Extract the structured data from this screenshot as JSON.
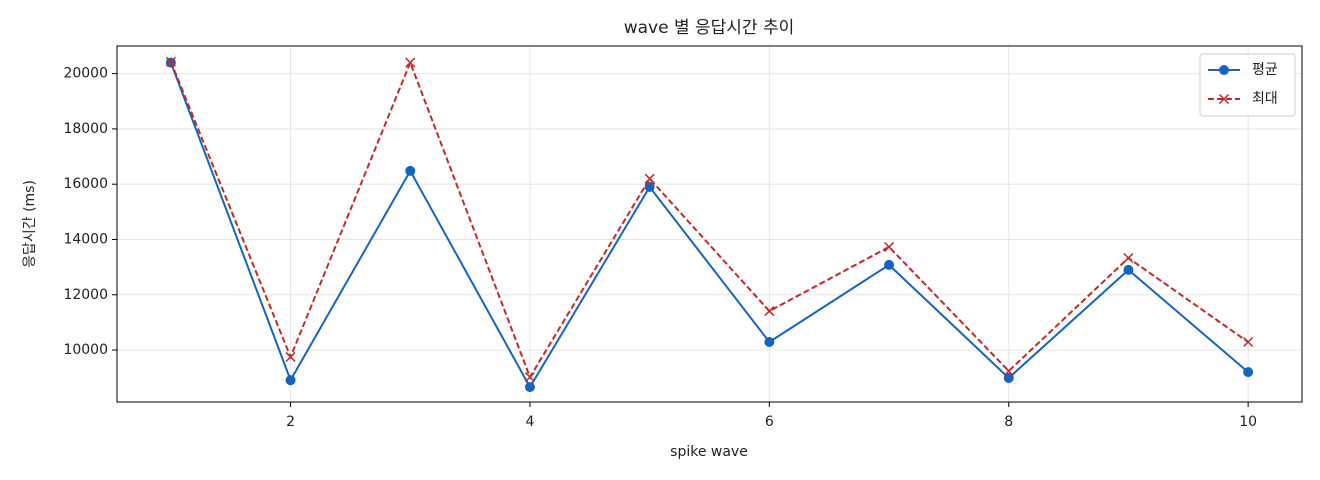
{
  "chart_data": {
    "type": "line",
    "title": "wave 별 응답시간 추이",
    "x_label": "spike wave",
    "y_label": "응답시간 (ms)",
    "x": [
      1,
      2,
      3,
      4,
      5,
      6,
      7,
      8,
      9,
      10
    ],
    "series": [
      {
        "name": "평균",
        "color": "#1565c0",
        "marker": "o",
        "linestyle": "solid",
        "values": [
          20400,
          8910,
          16480,
          8660,
          15900,
          10290,
          13080,
          8990,
          12900,
          9200
        ]
      },
      {
        "name": "최대",
        "color": "#c62828",
        "marker": "x",
        "linestyle": "dashed",
        "values": [
          20430,
          9750,
          20400,
          9020,
          16200,
          11410,
          13730,
          9240,
          13330,
          10290
        ]
      }
    ],
    "xlim": [
      0.55,
      10.45
    ],
    "xticks": [
      2,
      4,
      6,
      8,
      10
    ],
    "ylim": [
      8120,
      21000
    ],
    "yticks": [
      10000,
      12000,
      14000,
      16000,
      18000,
      20000
    ],
    "grid": true,
    "legend": "upper right"
  }
}
